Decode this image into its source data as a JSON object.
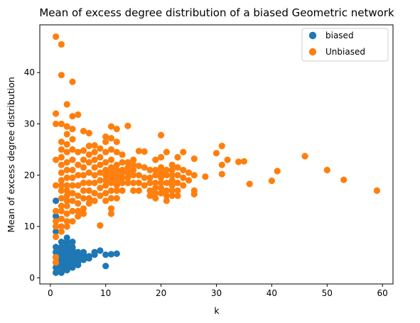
{
  "chart_data": {
    "type": "scatter",
    "title": "Mean of excess degree distribution of a biased Geometric network",
    "xlabel": "k",
    "ylabel": "Mean of excess degree distribution",
    "xlim": [
      -1.9,
      61.9
    ],
    "ylim": [
      -1.2,
      49.3
    ],
    "xticks": [
      0,
      10,
      20,
      30,
      40,
      50,
      60
    ],
    "yticks": [
      0,
      10,
      20,
      30,
      40
    ],
    "grid": false,
    "legend": {
      "position": "top-right"
    },
    "series": [
      {
        "name": "biased",
        "color": "#1f77b4",
        "points": [
          [
            1,
            1
          ],
          [
            1,
            2
          ],
          [
            1,
            3
          ],
          [
            1,
            4
          ],
          [
            1,
            5
          ],
          [
            1,
            6
          ],
          [
            1,
            9
          ],
          [
            1,
            10
          ],
          [
            1,
            12
          ],
          [
            1,
            15
          ],
          [
            2,
            1
          ],
          [
            2,
            1.5
          ],
          [
            2,
            2
          ],
          [
            2,
            2.5
          ],
          [
            2,
            3
          ],
          [
            2,
            3.5
          ],
          [
            2,
            4
          ],
          [
            2,
            4.5
          ],
          [
            2,
            5
          ],
          [
            2,
            5.5
          ],
          [
            2,
            6
          ],
          [
            2,
            7
          ],
          [
            3,
            1.5
          ],
          [
            3,
            2
          ],
          [
            3,
            2.5
          ],
          [
            3,
            3
          ],
          [
            3,
            3.5
          ],
          [
            3,
            4
          ],
          [
            3,
            4.5
          ],
          [
            3,
            5
          ],
          [
            3,
            5.5
          ],
          [
            3,
            6
          ],
          [
            3,
            6.5
          ],
          [
            3,
            7
          ],
          [
            3,
            7.8
          ],
          [
            4,
            2
          ],
          [
            4,
            2.5
          ],
          [
            4,
            3
          ],
          [
            4,
            3.5
          ],
          [
            4,
            4
          ],
          [
            4,
            4.5
          ],
          [
            4,
            5
          ],
          [
            4,
            5.5
          ],
          [
            4,
            6
          ],
          [
            4,
            7
          ],
          [
            5,
            2.5
          ],
          [
            5,
            3
          ],
          [
            5,
            3.5
          ],
          [
            5,
            4
          ],
          [
            5,
            4.5
          ],
          [
            5,
            5
          ],
          [
            6,
            3.5
          ],
          [
            6,
            4
          ],
          [
            6,
            4.5
          ],
          [
            6,
            5
          ],
          [
            7,
            3.8
          ],
          [
            7,
            4.2
          ],
          [
            8,
            4.5
          ],
          [
            8,
            5
          ],
          [
            9,
            5.3
          ],
          [
            10,
            2.3
          ],
          [
            10,
            4.5
          ],
          [
            11,
            4.6
          ],
          [
            12,
            4.7
          ]
        ]
      },
      {
        "name": "Unbiased",
        "color": "#ff7f0e",
        "points": [
          [
            1,
            47
          ],
          [
            1,
            32
          ],
          [
            1,
            30
          ],
          [
            1,
            23
          ],
          [
            1,
            18
          ],
          [
            1,
            13
          ],
          [
            1,
            11
          ],
          [
            1,
            10
          ],
          [
            1,
            8
          ],
          [
            1,
            4
          ],
          [
            1,
            3
          ],
          [
            2,
            45.5
          ],
          [
            2,
            39.5
          ],
          [
            2,
            30
          ],
          [
            2,
            26.5
          ],
          [
            2,
            25
          ],
          [
            2,
            23.5
          ],
          [
            2,
            22
          ],
          [
            2,
            20.5
          ],
          [
            2,
            19
          ],
          [
            2,
            18
          ],
          [
            2,
            17
          ],
          [
            2,
            15.5
          ],
          [
            2,
            14
          ],
          [
            2,
            13
          ],
          [
            2,
            11.5
          ],
          [
            2,
            10
          ],
          [
            2,
            9
          ],
          [
            3,
            33.8
          ],
          [
            3,
            29.5
          ],
          [
            3,
            28
          ],
          [
            3,
            26
          ],
          [
            3,
            24.5
          ],
          [
            3,
            22.5
          ],
          [
            3,
            21
          ],
          [
            3,
            19.5
          ],
          [
            3,
            18
          ],
          [
            3,
            17
          ],
          [
            3,
            16
          ],
          [
            3,
            15
          ],
          [
            3,
            14
          ],
          [
            3,
            12.5
          ],
          [
            3,
            11
          ],
          [
            3,
            10
          ],
          [
            4,
            38.2
          ],
          [
            4,
            31.5
          ],
          [
            4,
            29
          ],
          [
            4,
            27
          ],
          [
            4,
            25
          ],
          [
            4,
            23
          ],
          [
            4,
            21
          ],
          [
            4,
            19.5
          ],
          [
            4,
            18
          ],
          [
            4,
            16.5
          ],
          [
            4,
            15
          ],
          [
            4,
            13
          ],
          [
            4,
            11
          ],
          [
            5,
            31.8
          ],
          [
            5,
            24.5
          ],
          [
            5,
            22
          ],
          [
            5,
            20
          ],
          [
            5,
            18
          ],
          [
            5,
            16
          ],
          [
            5,
            14.5
          ],
          [
            5,
            13
          ],
          [
            5,
            12
          ],
          [
            6,
            28.6
          ],
          [
            6,
            24.8
          ],
          [
            6,
            23
          ],
          [
            6,
            21.5
          ],
          [
            6,
            20
          ],
          [
            6,
            18.5
          ],
          [
            6,
            17
          ],
          [
            6,
            15.5
          ],
          [
            6,
            13.5
          ],
          [
            6,
            12.5
          ],
          [
            7,
            28.2
          ],
          [
            7,
            25.7
          ],
          [
            7,
            24
          ],
          [
            7,
            22.5
          ],
          [
            7,
            20.5
          ],
          [
            7,
            18.5
          ],
          [
            7,
            17
          ],
          [
            7,
            15.5
          ],
          [
            7,
            14.5
          ],
          [
            8,
            25.8
          ],
          [
            8,
            24.5
          ],
          [
            8,
            23
          ],
          [
            8,
            21.5
          ],
          [
            8,
            20
          ],
          [
            8,
            18.5
          ],
          [
            8,
            16.5
          ],
          [
            8,
            15
          ],
          [
            9,
            25.2
          ],
          [
            9,
            23.5
          ],
          [
            9,
            22
          ],
          [
            9,
            20.5
          ],
          [
            9,
            19
          ],
          [
            9,
            17.5
          ],
          [
            9,
            16
          ],
          [
            9,
            10.2
          ],
          [
            10,
            27.5
          ],
          [
            10,
            26.5
          ],
          [
            10,
            24.5
          ],
          [
            10,
            22.5
          ],
          [
            10,
            21
          ],
          [
            10,
            20
          ],
          [
            10,
            19
          ],
          [
            10,
            18
          ],
          [
            10,
            16.5
          ],
          [
            10,
            15
          ],
          [
            11,
            29.5
          ],
          [
            11,
            27.2
          ],
          [
            11,
            25
          ],
          [
            11,
            23
          ],
          [
            11,
            21.5
          ],
          [
            11,
            20.5
          ],
          [
            11,
            19.5
          ],
          [
            11,
            18.5
          ],
          [
            11,
            17
          ],
          [
            11,
            15.5
          ],
          [
            11,
            13.5
          ],
          [
            11,
            12.5
          ],
          [
            12,
            29
          ],
          [
            12,
            26.5
          ],
          [
            12,
            24.5
          ],
          [
            12,
            22
          ],
          [
            12,
            21
          ],
          [
            12,
            20
          ],
          [
            12,
            19
          ],
          [
            12,
            18
          ],
          [
            12,
            17
          ],
          [
            12,
            15.5
          ],
          [
            13,
            24
          ],
          [
            13,
            22.5
          ],
          [
            13,
            21
          ],
          [
            13,
            20.5
          ],
          [
            13,
            19.5
          ],
          [
            13,
            18.5
          ],
          [
            13,
            17
          ],
          [
            14,
            29.6
          ],
          [
            14,
            22.5
          ],
          [
            14,
            21.5
          ],
          [
            14,
            20.5
          ],
          [
            14,
            19.5
          ],
          [
            14,
            18.5
          ],
          [
            15,
            23
          ],
          [
            15,
            22
          ],
          [
            15,
            21
          ],
          [
            15,
            20
          ],
          [
            15,
            18.5
          ],
          [
            15,
            17
          ],
          [
            16,
            24.7
          ],
          [
            16,
            21.8
          ],
          [
            16,
            20
          ],
          [
            16,
            18.5
          ],
          [
            16,
            17
          ],
          [
            17,
            24.6
          ],
          [
            17,
            21.5
          ],
          [
            17,
            19.5
          ],
          [
            17,
            18
          ],
          [
            18,
            21
          ],
          [
            18,
            19.5
          ],
          [
            18,
            18.5
          ],
          [
            18,
            17
          ],
          [
            18,
            16
          ],
          [
            19,
            23
          ],
          [
            19,
            21
          ],
          [
            19,
            20
          ],
          [
            19,
            18.5
          ],
          [
            19,
            17.5
          ],
          [
            19,
            16.5
          ],
          [
            19,
            15.5
          ],
          [
            20,
            27.8
          ],
          [
            20,
            23.5
          ],
          [
            20,
            21.5
          ],
          [
            20,
            20.5
          ],
          [
            20,
            19.5
          ],
          [
            20,
            18.5
          ],
          [
            20,
            17.5
          ],
          [
            20,
            16.5
          ],
          [
            21,
            24.5
          ],
          [
            21,
            21
          ],
          [
            21,
            20
          ],
          [
            21,
            18.5
          ],
          [
            21,
            17
          ],
          [
            21,
            16
          ],
          [
            21,
            15
          ],
          [
            22,
            22
          ],
          [
            22,
            21
          ],
          [
            22,
            20
          ],
          [
            22,
            19
          ],
          [
            22,
            18
          ],
          [
            22,
            17
          ],
          [
            22,
            16
          ],
          [
            23,
            23.5
          ],
          [
            23,
            21.5
          ],
          [
            23,
            20
          ],
          [
            23,
            18.5
          ],
          [
            23,
            17
          ],
          [
            23,
            16
          ],
          [
            24,
            24.5
          ],
          [
            24,
            21
          ],
          [
            24,
            19.5
          ],
          [
            24,
            18
          ],
          [
            25,
            20.5
          ],
          [
            25,
            19
          ],
          [
            26,
            23.2
          ],
          [
            26,
            20
          ],
          [
            26,
            17
          ],
          [
            26,
            16.3
          ],
          [
            28,
            19.7
          ],
          [
            30,
            24.3
          ],
          [
            31,
            25.7
          ],
          [
            31,
            22
          ],
          [
            31,
            20.2
          ],
          [
            32,
            23
          ],
          [
            34,
            22.6
          ],
          [
            35,
            22.7
          ],
          [
            36,
            18.3
          ],
          [
            40,
            18.9
          ],
          [
            41,
            20.8
          ],
          [
            46,
            23.7
          ],
          [
            50,
            21
          ],
          [
            53,
            19.1
          ],
          [
            59,
            17
          ]
        ]
      }
    ]
  }
}
